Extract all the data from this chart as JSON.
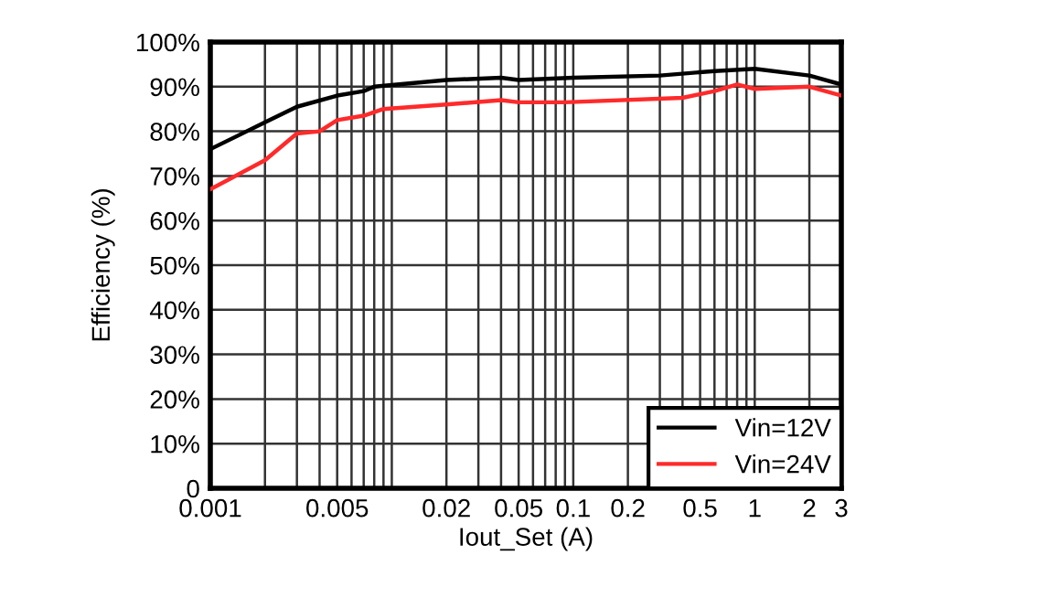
{
  "chart_data": {
    "type": "line",
    "xlabel": "Iout_Set (A)",
    "ylabel": "Efficiency (%)",
    "series": [
      {
        "name": "Vin=12V",
        "color": "#000000",
        "x": [
          0.001,
          0.002,
          0.003,
          0.005,
          0.007,
          0.008,
          0.02,
          0.04,
          0.05,
          0.1,
          0.3,
          0.6,
          1,
          2,
          3
        ],
        "values": [
          76,
          82,
          85.5,
          88,
          89,
          90,
          91.5,
          92,
          91.5,
          92,
          92.5,
          93.5,
          94,
          92.5,
          90.5
        ]
      },
      {
        "name": "Vin=24V",
        "color": "#ff2a2a",
        "x": [
          0.001,
          0.002,
          0.003,
          0.004,
          0.005,
          0.007,
          0.009,
          0.02,
          0.04,
          0.05,
          0.09,
          0.4,
          0.6,
          0.8,
          1,
          2,
          3
        ],
        "values": [
          67,
          73.5,
          79.5,
          80,
          82.5,
          83.5,
          85,
          86,
          87,
          86.5,
          86.5,
          87.5,
          89,
          90.5,
          89.5,
          90,
          88
        ]
      }
    ],
    "log": "x",
    "xlim": [
      0.001,
      3
    ],
    "ylim": [
      0,
      100
    ],
    "xticks": [
      0.001,
      {
        "value": 0.002,
        "label": null
      },
      {
        "value": 0.003,
        "label": null
      },
      {
        "value": 0.004,
        "label": null
      },
      0.005,
      {
        "value": 0.006,
        "label": null
      },
      {
        "value": 0.007,
        "label": null
      },
      {
        "value": 0.008,
        "label": null
      },
      {
        "value": 0.009,
        "label": null
      },
      {
        "value": 0.01,
        "label": null
      },
      0.02,
      {
        "value": 0.03,
        "label": null
      },
      {
        "value": 0.04,
        "label": null
      },
      0.05,
      {
        "value": 0.06,
        "label": null
      },
      {
        "value": 0.07,
        "label": null
      },
      {
        "value": 0.08,
        "label": null
      },
      {
        "value": 0.09,
        "label": null
      },
      0.1,
      0.2,
      {
        "value": 0.3,
        "label": null
      },
      {
        "value": 0.4,
        "label": null
      },
      0.5,
      {
        "value": 0.6,
        "label": null
      },
      {
        "value": 0.7,
        "label": null
      },
      {
        "value": 0.8,
        "label": null
      },
      {
        "value": 0.9,
        "label": null
      },
      1,
      2,
      3
    ],
    "yticks": [
      0,
      {
        "value": 10,
        "label": "10%"
      },
      {
        "value": 20,
        "label": "20%"
      },
      {
        "value": 30,
        "label": "30%"
      },
      {
        "value": 40,
        "label": "40%"
      },
      {
        "value": 50,
        "label": "50%"
      },
      {
        "value": 60,
        "label": "60%"
      },
      {
        "value": 70,
        "label": "70%"
      },
      {
        "value": 80,
        "label": "80%"
      },
      {
        "value": 90,
        "label": "90%"
      },
      {
        "value": 100,
        "label": "100%"
      }
    ],
    "grid": true,
    "legend": "bottom right",
    "marker": "none",
    "line_style": "solid"
  }
}
